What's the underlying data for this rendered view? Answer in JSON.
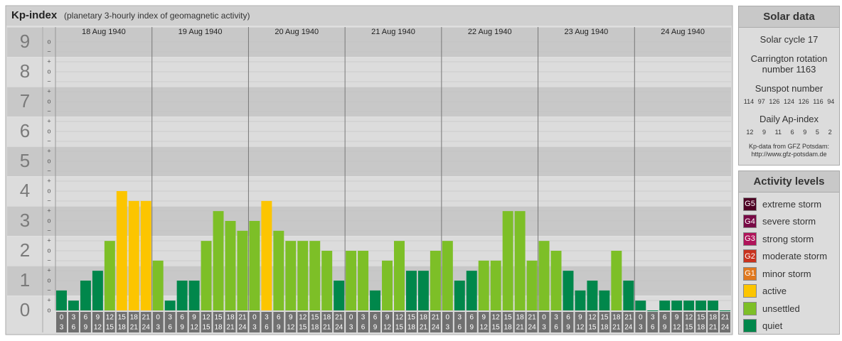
{
  "title": "Kp-index",
  "subtitle": "(planetary 3-hourly index of geomagnetic activity)",
  "chart_data": {
    "type": "bar",
    "categories": [
      "18 Aug 1940",
      "19 Aug 1940",
      "20 Aug 1940",
      "21 Aug 1940",
      "22 Aug 1940",
      "23 Aug 1940",
      "24 Aug 1940"
    ],
    "time_slots": [
      [
        "0",
        "3"
      ],
      [
        "3",
        "6"
      ],
      [
        "6",
        "9"
      ],
      [
        "9",
        "12"
      ],
      [
        "12",
        "15"
      ],
      [
        "15",
        "18"
      ],
      [
        "18",
        "21"
      ],
      [
        "21",
        "24"
      ]
    ],
    "values": [
      [
        0.67,
        0.33,
        1,
        1.33,
        2.33,
        4,
        3.67,
        3.67
      ],
      [
        1.67,
        0.33,
        1,
        1,
        2.33,
        3.33,
        3,
        2.67
      ],
      [
        3,
        3.67,
        2.67,
        2.33,
        2.33,
        2.33,
        2,
        1
      ],
      [
        2,
        2,
        0.67,
        1.67,
        2.33,
        1.33,
        1.33,
        2
      ],
      [
        2.33,
        1,
        1.33,
        1.67,
        1.67,
        3.33,
        3.33,
        1.67
      ],
      [
        2.33,
        2,
        1.33,
        0.67,
        1,
        0.67,
        2,
        1
      ],
      [
        0.33,
        0,
        0.33,
        0.33,
        0.33,
        0.33,
        0.33,
        0
      ]
    ],
    "colors": [
      [
        "#00874b",
        "#00874b",
        "#00874b",
        "#00874b",
        "#7dbf27",
        "#fcc500",
        "#fcc500",
        "#fcc500"
      ],
      [
        "#7dbf27",
        "#00874b",
        "#00874b",
        "#00874b",
        "#7dbf27",
        "#7dbf27",
        "#7dbf27",
        "#7dbf27"
      ],
      [
        "#7dbf27",
        "#fcc500",
        "#7dbf27",
        "#7dbf27",
        "#7dbf27",
        "#7dbf27",
        "#7dbf27",
        "#00874b"
      ],
      [
        "#7dbf27",
        "#7dbf27",
        "#00874b",
        "#7dbf27",
        "#7dbf27",
        "#00874b",
        "#00874b",
        "#7dbf27"
      ],
      [
        "#7dbf27",
        "#00874b",
        "#00874b",
        "#7dbf27",
        "#7dbf27",
        "#7dbf27",
        "#7dbf27",
        "#7dbf27"
      ],
      [
        "#7dbf27",
        "#7dbf27",
        "#00874b",
        "#00874b",
        "#00874b",
        "#00874b",
        "#7dbf27",
        "#00874b"
      ],
      [
        "#00874b",
        "#00874b",
        "#00874b",
        "#00874b",
        "#00874b",
        "#00874b",
        "#00874b",
        "#00874b"
      ]
    ],
    "ylim": [
      0,
      9.5
    ],
    "yticks": [
      0,
      1,
      2,
      3,
      4,
      5,
      6,
      7,
      8,
      9
    ],
    "minor_tick_labels": {
      "minus": "−",
      "zero": "o",
      "plus": "+"
    }
  },
  "solar_data": {
    "title": "Solar data",
    "cycle": "Solar cycle 17",
    "carrington": "Carrington rotation number 1163",
    "sunspot_title": "Sunspot number",
    "sunspot_numbers": [
      114,
      97,
      126,
      124,
      126,
      116,
      94
    ],
    "ap_title": "Daily Ap-index",
    "ap_index": [
      12,
      9,
      11,
      6,
      9,
      5,
      2
    ],
    "source": "Kp-data from GFZ Potsdam:",
    "source_url": "http://www.gfz-potsdam.de"
  },
  "activity_levels": {
    "title": "Activity levels",
    "items": [
      {
        "badge": "G5",
        "label": "extreme storm",
        "color": "#4d0023"
      },
      {
        "badge": "G4",
        "label": "severe storm",
        "color": "#780a46"
      },
      {
        "badge": "G3",
        "label": "strong storm",
        "color": "#b0145a"
      },
      {
        "badge": "G2",
        "label": "moderate storm",
        "color": "#c8321e"
      },
      {
        "badge": "G1",
        "label": "minor storm",
        "color": "#e0781e"
      },
      {
        "label": "active",
        "color": "#fcc500"
      },
      {
        "label": "unsettled",
        "color": "#7dbf27"
      },
      {
        "label": "quiet",
        "color": "#00874b"
      }
    ]
  }
}
